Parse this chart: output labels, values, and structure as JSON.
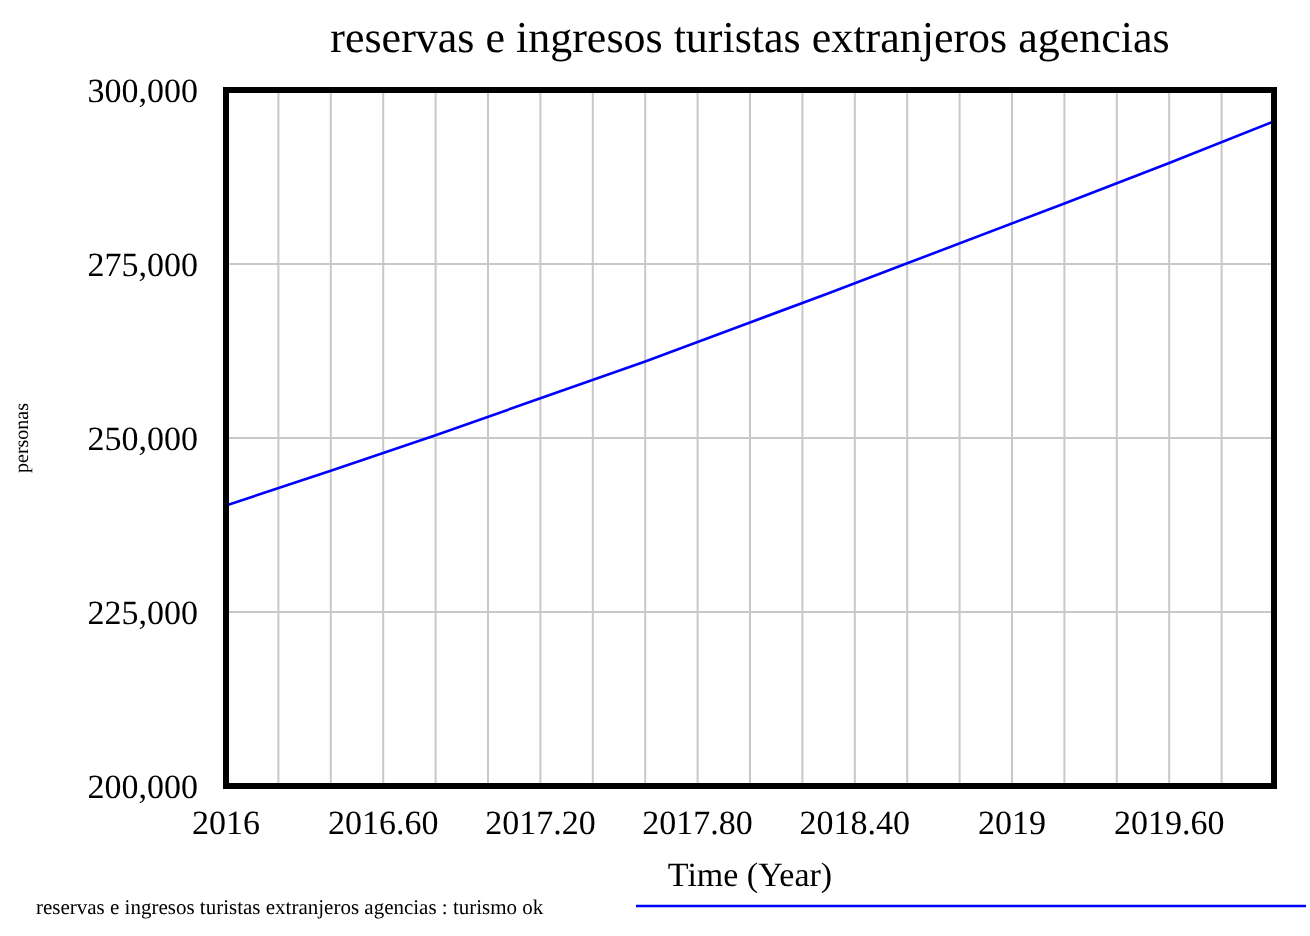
{
  "chart_data": {
    "type": "line",
    "title": "reservas e ingresos turistas extranjeros agencias",
    "xlabel": "Time (Year)",
    "ylabel": "personas",
    "x": [
      2016,
      2016.4,
      2016.8,
      2017.2,
      2017.6,
      2018,
      2018.3,
      2018.6,
      2019.2,
      2019.6,
      2020
    ],
    "series": [
      {
        "name": "reservas e ingresos turistas extranjeros agencias : turismo ok",
        "color": "#0000ff",
        "values": [
          240300,
          245300,
          250400,
          255700,
          261000,
          266600,
          270800,
          275100,
          283700,
          289500,
          295500
        ]
      }
    ],
    "xlim": [
      2016,
      2020
    ],
    "xticks": [
      2016,
      {
        "value": 2016.2,
        "label": null
      },
      {
        "value": 2016.4,
        "label": null
      },
      {
        "value": 2016.6,
        "label": "2016.60"
      },
      {
        "value": 2016.8,
        "label": null
      },
      {
        "value": 2017,
        "label": null
      },
      {
        "value": 2017.2,
        "label": "2017.20"
      },
      {
        "value": 2017.4,
        "label": null
      },
      {
        "value": 2017.6,
        "label": null
      },
      {
        "value": 2017.8,
        "label": "2017.80"
      },
      {
        "value": 2018,
        "label": null
      },
      {
        "value": 2018.2,
        "label": null
      },
      {
        "value": 2018.4,
        "label": "2018.40"
      },
      {
        "value": 2018.6,
        "label": null
      },
      {
        "value": 2018.8,
        "label": null
      },
      2019,
      {
        "value": 2019.2,
        "label": null
      },
      {
        "value": 2019.4,
        "label": null
      },
      {
        "value": 2019.6,
        "label": "2019.60"
      },
      {
        "value": 2019.8,
        "label": null
      }
    ],
    "ylim": [
      200000,
      300000
    ],
    "yticks": [
      {
        "value": 200000,
        "label": "200,000"
      },
      {
        "value": 225000,
        "label": "225,000"
      },
      {
        "value": 250000,
        "label": "250,000"
      },
      {
        "value": 275000,
        "label": "275,000"
      },
      {
        "value": 300000,
        "label": "300,000"
      }
    ],
    "grid": true,
    "legend": "bottom",
    "marker": "none",
    "line_style": "solid"
  }
}
